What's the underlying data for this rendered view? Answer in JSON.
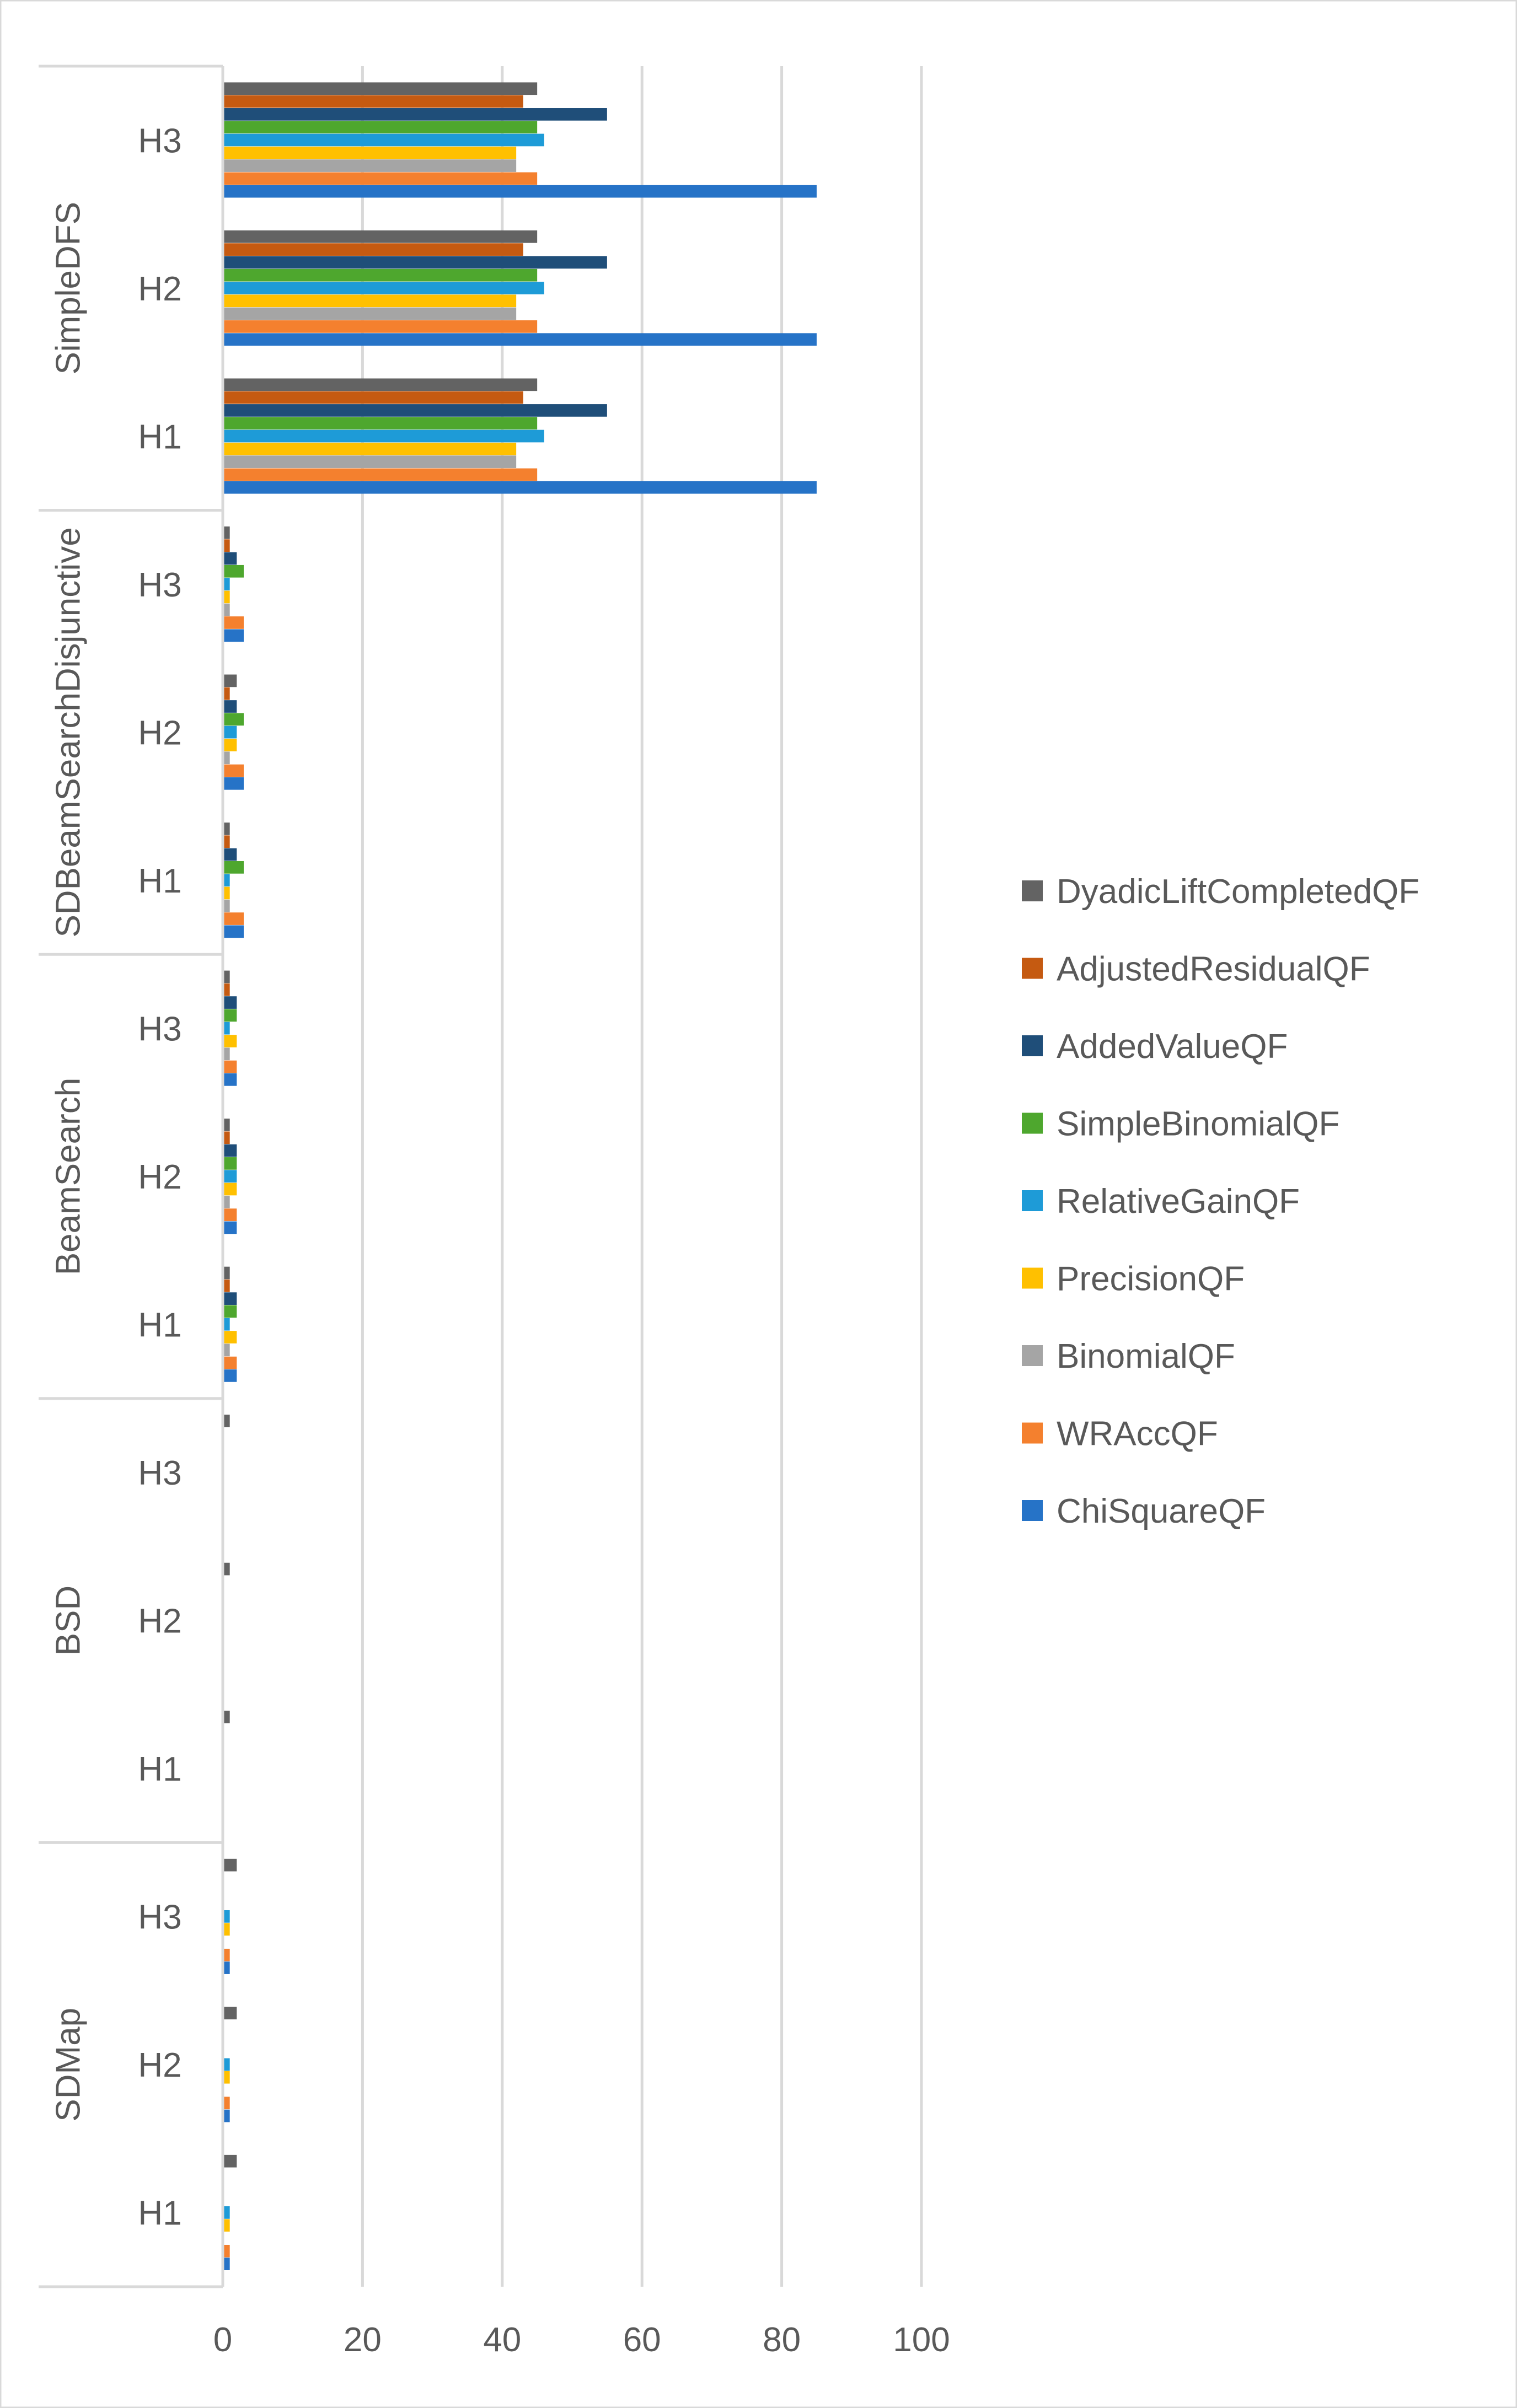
{
  "chart_data": {
    "type": "bar",
    "orientation": "horizontal",
    "title": "",
    "xlabel": "",
    "ylabel": "",
    "xlim": [
      0,
      100
    ],
    "x_ticks": [
      "0",
      "20",
      "40",
      "60",
      "80",
      "100"
    ],
    "grid": "vertical",
    "legend_position": "right",
    "groups": [
      {
        "name": "SimpleDFS",
        "hypotheses": [
          "H3",
          "H2",
          "H1"
        ]
      },
      {
        "name": "SDBeamSearchDisjunctive",
        "hypotheses": [
          "H3",
          "H2",
          "H1"
        ]
      },
      {
        "name": "BeamSearch",
        "hypotheses": [
          "H3",
          "H2",
          "H1"
        ]
      },
      {
        "name": "BSD",
        "hypotheses": [
          "H3",
          "H2",
          "H1"
        ]
      },
      {
        "name": "SDMap",
        "hypotheses": [
          "H3",
          "H2",
          "H1"
        ]
      }
    ],
    "categories": [
      "SimpleDFS / H3",
      "SimpleDFS / H2",
      "SimpleDFS / H1",
      "SDBeamSearchDisjunctive / H3",
      "SDBeamSearchDisjunctive / H2",
      "SDBeamSearchDisjunctive / H1",
      "BeamSearch / H3",
      "BeamSearch / H2",
      "BeamSearch / H1",
      "BSD / H3",
      "BSD / H2",
      "BSD / H1",
      "SDMap / H3",
      "SDMap / H2",
      "SDMap / H1"
    ],
    "series": [
      {
        "name": "DyadicLiftCompletedQF",
        "color": "#636363",
        "values": [
          45,
          45,
          45,
          1,
          2,
          1,
          1,
          1,
          1,
          1,
          1,
          1,
          2,
          2,
          2
        ]
      },
      {
        "name": "AdjustedResidualQF",
        "color": "#C55A11",
        "values": [
          43,
          43,
          43,
          1,
          1,
          1,
          1,
          1,
          1,
          0,
          0,
          0,
          0,
          0,
          0
        ]
      },
      {
        "name": "AddedValueQF",
        "color": "#1F4E79",
        "values": [
          55,
          55,
          55,
          2,
          2,
          2,
          2,
          2,
          2,
          0,
          0,
          0,
          0,
          0,
          0
        ]
      },
      {
        "name": "SimpleBinomialQF",
        "color": "#4EA72E",
        "values": [
          45,
          45,
          45,
          3,
          3,
          3,
          2,
          2,
          2,
          0,
          0,
          0,
          0,
          0,
          0
        ]
      },
      {
        "name": "RelativeGainQF",
        "color": "#1E9BD7",
        "values": [
          46,
          46,
          46,
          1,
          2,
          1,
          1,
          2,
          1,
          0,
          0,
          0,
          1,
          1,
          1
        ]
      },
      {
        "name": "PrecisionQF",
        "color": "#FFC000",
        "values": [
          42,
          42,
          42,
          1,
          2,
          1,
          2,
          2,
          2,
          0,
          0,
          0,
          1,
          1,
          1
        ]
      },
      {
        "name": "BinomialQF",
        "color": "#A5A5A5",
        "values": [
          42,
          42,
          42,
          1,
          1,
          1,
          1,
          1,
          1,
          0,
          0,
          0,
          0,
          0,
          0
        ]
      },
      {
        "name": "WRAccQF",
        "color": "#F4802E",
        "values": [
          45,
          45,
          45,
          3,
          3,
          3,
          2,
          2,
          2,
          0,
          0,
          0,
          1,
          1,
          1
        ]
      },
      {
        "name": "ChiSquareQF",
        "color": "#2673C7",
        "values": [
          85,
          85,
          85,
          3,
          3,
          3,
          2,
          2,
          2,
          0,
          0,
          0,
          1,
          1,
          1
        ]
      }
    ]
  }
}
